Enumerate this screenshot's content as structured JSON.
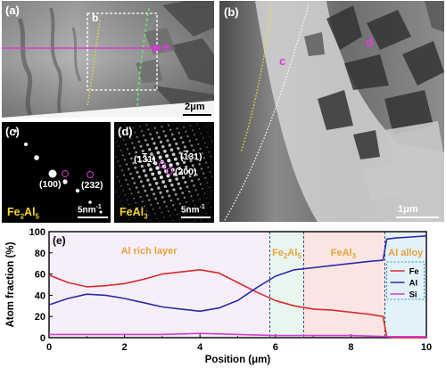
{
  "panel_a": {
    "label": "(a)",
    "region_label": "b",
    "marker": "e",
    "scale_bar": "2μm"
  },
  "panel_b": {
    "label": "(b)",
    "marker_c": "c",
    "marker_d": "d",
    "scale_bar": "1μm"
  },
  "panel_c": {
    "label": "(c)",
    "index_1": "(100)",
    "index_2": "(232)",
    "phase": "Fe2Al5",
    "scale_bar": "5nm⁻¹"
  },
  "panel_d": {
    "label": "(d)",
    "index_1": "(131)",
    "index_2": "(131)",
    "index_3": "(200)",
    "phase": "FeAl3",
    "scale_bar": "5nm⁻¹"
  },
  "chart_data": {
    "type": "line",
    "panel_label": "(e)",
    "xlabel": "Position (μm)",
    "ylabel": "Atom fraction (%)",
    "xlim": [
      0,
      10
    ],
    "ylim": [
      0,
      100
    ],
    "x_ticks": [
      "0",
      "2",
      "4",
      "6",
      "8",
      "10"
    ],
    "y_ticks": [
      "0",
      "20",
      "40",
      "60",
      "80",
      "100"
    ],
    "legend": "inset upper-right",
    "regions": [
      {
        "label": "Al rich layer",
        "x_start": 0,
        "x_end": 5.85,
        "color": "#f6eefa"
      },
      {
        "label": "Fe2Al5",
        "x_start": 5.85,
        "x_end": 6.75,
        "color": "#e8f6ef"
      },
      {
        "label": "FeAl3",
        "x_start": 6.75,
        "x_end": 8.9,
        "color": "#fbe5e2"
      },
      {
        "label": "Al alloy",
        "x_start": 8.9,
        "x_end": 10,
        "color": "#e2f2fb"
      }
    ],
    "series": [
      {
        "name": "Fe",
        "color": "#d62c2c",
        "x": [
          0,
          0.5,
          1,
          1.5,
          2,
          2.5,
          3,
          3.5,
          4,
          4.5,
          5,
          5.5,
          6,
          6.5,
          7,
          7.5,
          8,
          8.5,
          8.85,
          8.95,
          9.2,
          9.6,
          10
        ],
        "y": [
          59,
          52,
          48,
          49,
          51,
          55,
          60,
          62,
          64,
          61,
          52,
          43,
          35,
          30,
          27,
          26,
          24,
          22,
          20,
          1,
          0,
          0,
          0
        ]
      },
      {
        "name": "Al",
        "color": "#2a2aa6",
        "x": [
          0,
          0.5,
          1,
          1.5,
          2,
          2.5,
          3,
          3.5,
          4,
          4.5,
          5,
          5.5,
          6,
          6.5,
          7,
          7.5,
          8,
          8.5,
          8.85,
          8.95,
          9.2,
          9.6,
          10
        ],
        "y": [
          31,
          37,
          41,
          40,
          37,
          33,
          29,
          27,
          25,
          28,
          35,
          47,
          58,
          64,
          66,
          68,
          70,
          72,
          73,
          93,
          94,
          95,
          96
        ]
      },
      {
        "name": "Si",
        "color": "#d63ad6",
        "x": [
          0,
          1,
          2,
          3,
          4,
          5,
          6,
          7,
          8,
          9,
          10
        ],
        "y": [
          3,
          3,
          3,
          3,
          4,
          3,
          2,
          2,
          2,
          1,
          1
        ]
      }
    ]
  }
}
